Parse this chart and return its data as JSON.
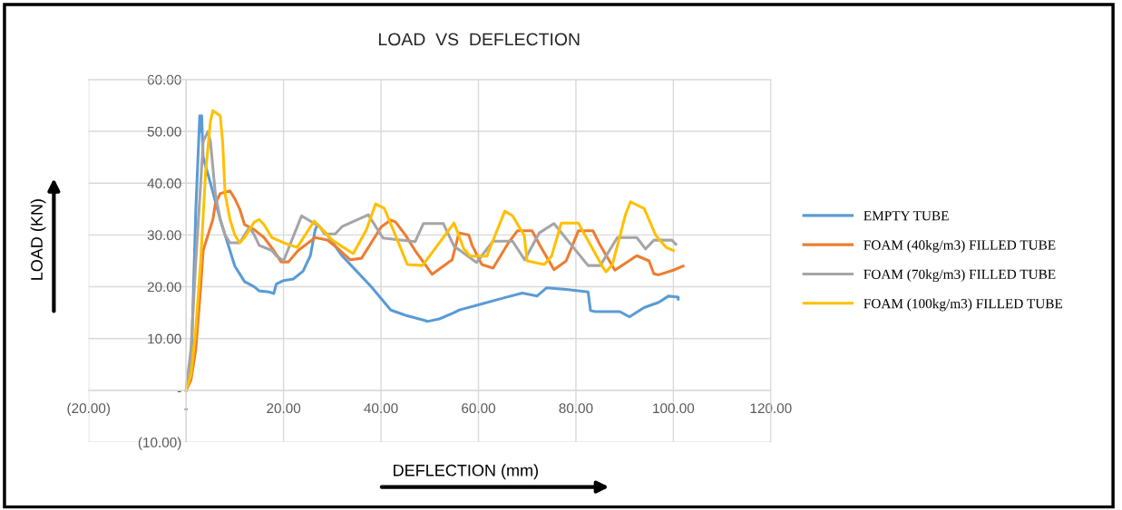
{
  "chart_data": {
    "type": "line",
    "title": "LOAD  VS  DEFLECTION",
    "xlabel": "DEFLECTION (mm)",
    "ylabel": "LOAD (KN)",
    "xlim": [
      -20,
      120
    ],
    "ylim": [
      -10,
      60
    ],
    "xticks": [
      {
        "value": -20,
        "label": "(20.00)"
      },
      {
        "value": 0,
        "label": "-"
      },
      {
        "value": 20,
        "label": "20.00"
      },
      {
        "value": 40,
        "label": "40.00"
      },
      {
        "value": 60,
        "label": "60.00"
      },
      {
        "value": 80,
        "label": "80.00"
      },
      {
        "value": 100,
        "label": "100.00"
      },
      {
        "value": 120,
        "label": "120.00"
      }
    ],
    "yticks": [
      {
        "value": -10,
        "label": "(10.00)"
      },
      {
        "value": 0,
        "label": "-"
      },
      {
        "value": 10,
        "label": "10.00"
      },
      {
        "value": 20,
        "label": "20.00"
      },
      {
        "value": 30,
        "label": "30.00"
      },
      {
        "value": 40,
        "label": "40.00"
      },
      {
        "value": 50,
        "label": "50.00"
      },
      {
        "value": 60,
        "label": "60.00"
      }
    ],
    "grid": true,
    "legend": "right",
    "marker": "none",
    "line_style": "solid",
    "series": [
      {
        "name": "EMPTY TUBE",
        "color": "#5b9bd5",
        "x": [
          0,
          1,
          2,
          2.8,
          3,
          3.2,
          3.5,
          5,
          7,
          10,
          12,
          14,
          15,
          17,
          18,
          18.5,
          20,
          22,
          24,
          25.5,
          26.5,
          27,
          29,
          32,
          35,
          38,
          42,
          45,
          49,
          49.5,
          52,
          55,
          56,
          60,
          65,
          69,
          72,
          74,
          78,
          82.5,
          83,
          84,
          89,
          91,
          94,
          97,
          99,
          101,
          101
        ],
        "values": [
          0,
          3,
          35,
          53,
          50,
          53,
          45,
          40,
          33,
          24,
          21,
          20,
          19.2,
          19,
          18.7,
          20.5,
          21.2,
          21.5,
          23,
          26,
          31,
          32,
          30,
          26,
          23,
          20,
          15.5,
          14.5,
          13.5,
          13.3,
          13.8,
          15,
          15.5,
          16.5,
          17.8,
          18.8,
          18.2,
          19.8,
          19.5,
          19,
          15.4,
          15.2,
          15.2,
          14.2,
          16,
          17,
          18.2,
          18,
          17.6
        ]
      },
      {
        "name": "FOAM (40kg/m3) FILLED TUBE",
        "color": "#ed7d31",
        "x": [
          0,
          1,
          2,
          3,
          3.5,
          4.5,
          5.5,
          6,
          7,
          9,
          10,
          11,
          12,
          14,
          16,
          18,
          19.5,
          21,
          23,
          26.5,
          29,
          31,
          33.7,
          36,
          38,
          40,
          42,
          43,
          45,
          47,
          50.5,
          54.6,
          56,
          58,
          58.7,
          60.7,
          63,
          66.3,
          68,
          71,
          72.6,
          75.5,
          78,
          80.5,
          83.5,
          85,
          88,
          92.5,
          95,
          96,
          97,
          100,
          102
        ],
        "values": [
          0,
          2,
          8,
          20,
          27,
          30,
          33,
          36,
          38,
          38.5,
          37,
          35,
          32,
          31,
          29.5,
          27,
          24.8,
          24.8,
          27,
          29.5,
          29,
          27.5,
          25.2,
          25.5,
          28.5,
          31.5,
          32.9,
          32.5,
          30,
          27,
          22.4,
          25.2,
          30.4,
          30,
          28,
          24.3,
          23.6,
          28.7,
          30.8,
          30.8,
          28,
          23.3,
          25,
          30.8,
          30.8,
          28,
          23.2,
          26,
          25,
          22.5,
          22.3,
          23.2,
          24
        ]
      },
      {
        "name": "FOAM (70kg/m3) FILLED TUBE",
        "color": "#a5a5a5",
        "x": [
          0,
          1,
          2,
          3,
          3.5,
          4.5,
          5,
          6,
          7,
          8,
          9,
          11,
          12,
          13,
          14,
          15,
          17.6,
          18.5,
          20,
          23.7,
          27.4,
          28.4,
          30.6,
          32,
          37.4,
          40.4,
          44,
          47,
          48.7,
          52.8,
          55,
          57,
          59.6,
          63,
          67,
          69.5,
          72.5,
          75.5,
          82.5,
          85,
          88.5,
          92.5,
          94.3,
          96,
          99.7,
          100.5
        ],
        "values": [
          0,
          8,
          25,
          40,
          48,
          50,
          48,
          38,
          33,
          30,
          28.5,
          28.5,
          30,
          31.5,
          30,
          28,
          27,
          26,
          25,
          33.7,
          31.6,
          30.2,
          30.2,
          31.6,
          33.9,
          29.4,
          29,
          28.7,
          32.2,
          32.2,
          27.8,
          26.5,
          24.7,
          28.8,
          28.8,
          25.2,
          30.4,
          32.2,
          24.1,
          24.1,
          29.5,
          29.5,
          27.3,
          29,
          29,
          28.2
        ]
      },
      {
        "name": "FOAM (100kg/m3) FILLED TUBE",
        "color": "#ffc000",
        "x": [
          0,
          1,
          2,
          3,
          4,
          5,
          5.5,
          7,
          7.5,
          8,
          9,
          10,
          11,
          12,
          13,
          14,
          15,
          16,
          17.6,
          20,
          22.8,
          26.3,
          28,
          30,
          34.3,
          37,
          38.9,
          40.7,
          43.5,
          45.4,
          48.5,
          55,
          57,
          58.3,
          61.7,
          65.4,
          67,
          69.4,
          70,
          73.5,
          75,
          77,
          80.5,
          85.5,
          86.2,
          87.5,
          90.2,
          91.2,
          94,
          96.4,
          98.5,
          100
        ],
        "values": [
          0,
          3,
          12,
          25,
          42,
          52,
          54,
          53,
          48,
          38,
          33,
          30,
          28.5,
          29.5,
          31,
          32.5,
          33,
          32,
          29.5,
          28.5,
          27.6,
          32.7,
          31,
          29,
          26.4,
          31,
          36,
          35.1,
          28.7,
          24.3,
          24.1,
          32.3,
          27.3,
          25.9,
          25.9,
          34.6,
          33.7,
          29.9,
          25,
          24.3,
          25.9,
          32.3,
          32.3,
          23.8,
          22.9,
          24.3,
          34,
          36.4,
          35.1,
          29.9,
          27.6,
          27
        ]
      }
    ]
  }
}
